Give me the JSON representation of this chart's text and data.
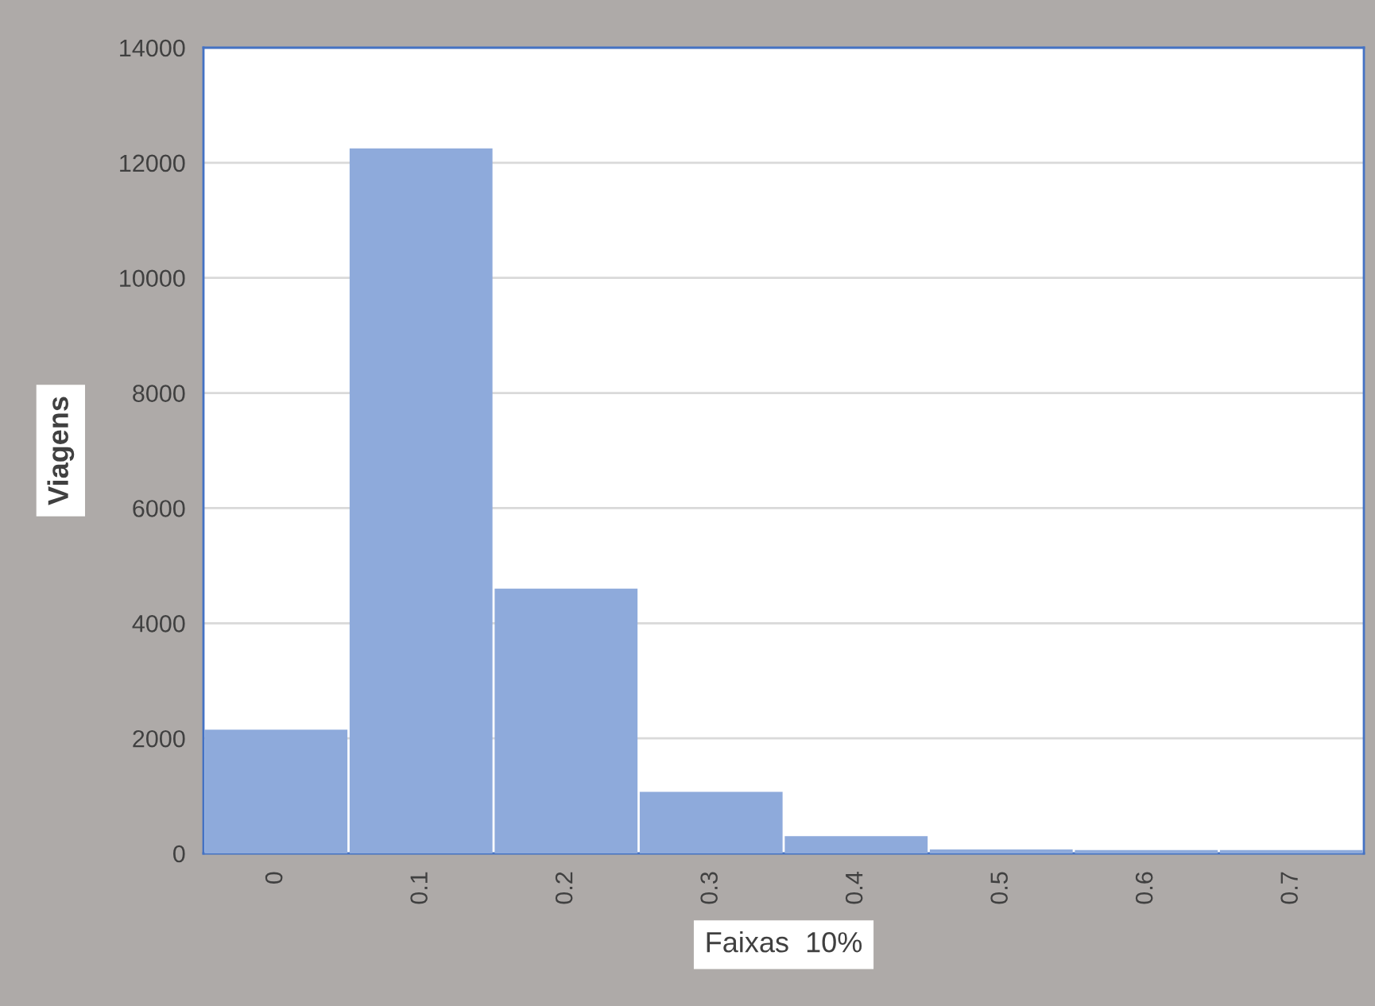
{
  "chart_data": {
    "type": "bar",
    "xlabel": "Faixas  10%",
    "ylabel": "Viagens",
    "categories": [
      "0",
      "0.1",
      "0.2",
      "0.3",
      "0.4",
      "0.5",
      "0.6",
      "0.7"
    ],
    "values": [
      2150,
      12250,
      4600,
      1070,
      300,
      70,
      60,
      60
    ],
    "color": "#8eaadb",
    "ylim": [
      0,
      14000
    ],
    "yticks": [
      0,
      2000,
      4000,
      6000,
      8000,
      10000,
      12000,
      14000
    ],
    "grid": "y"
  }
}
